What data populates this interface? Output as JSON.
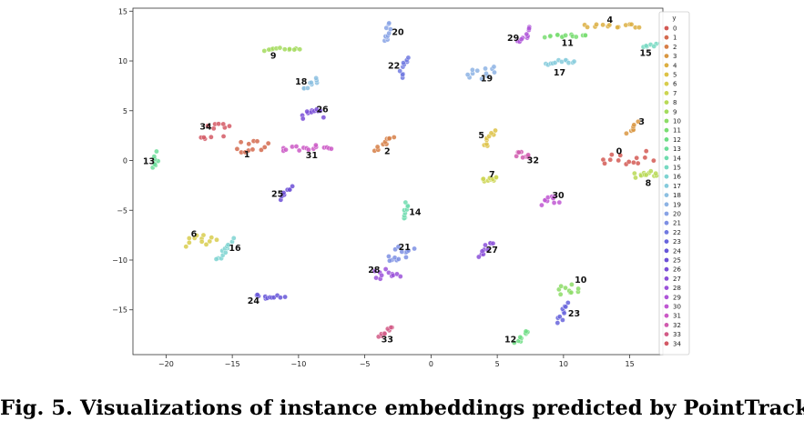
{
  "caption": "Fig. 5. Visualizations of instance embeddings predicted by PointTrack.",
  "chart_data": {
    "type": "scatter",
    "title": "",
    "xlabel": "",
    "ylabel": "",
    "xlim": [
      -22.5,
      17.5
    ],
    "ylim": [
      -19.5,
      15.3
    ],
    "xticks": [
      -20,
      -15,
      -10,
      -5,
      0,
      5,
      10,
      15
    ],
    "yticks": [
      15,
      10,
      5,
      0,
      -5,
      -10,
      -15
    ],
    "grid": false,
    "legend": {
      "title": "y",
      "placement": "right",
      "entries": [
        "0",
        "1",
        "2",
        "3",
        "4",
        "5",
        "6",
        "7",
        "8",
        "9",
        "10",
        "11",
        "12",
        "13",
        "14",
        "15",
        "16",
        "17",
        "18",
        "19",
        "20",
        "21",
        "22",
        "23",
        "24",
        "25",
        "26",
        "27",
        "28",
        "29",
        "30",
        "31",
        "32",
        "33",
        "34"
      ]
    },
    "palette": [
      "#d35a55",
      "#d46a4e",
      "#d67f47",
      "#d99742",
      "#dcaf42",
      "#ddc246",
      "#d8cd4d",
      "#ccd551",
      "#b8d956",
      "#a3db5d",
      "#8cdc66",
      "#79dd72",
      "#6ddd84",
      "#6cdd99",
      "#70dcaf",
      "#77d9c2",
      "#7ed3d1",
      "#86cbdc",
      "#8cc0e1",
      "#8db3e4",
      "#88a3e5",
      "#7d8fe3",
      "#7079e0",
      "#6764dc",
      "#6656d8",
      "#6c4fd6",
      "#7a4ed7",
      "#8a4fd8",
      "#9b52d9",
      "#ae55d8",
      "#bf57d2",
      "#cb59c6",
      "#d05aae",
      "#d25a86",
      "#d35965"
    ],
    "clusters": [
      {
        "id": "0",
        "cx": 14.8,
        "cy": 0.2,
        "dx": 3.6,
        "dy": 1.3,
        "n": 14,
        "lx": 14.2,
        "ly": 0.9
      },
      {
        "id": "1",
        "cx": -13.5,
        "cy": 1.3,
        "dx": 2.2,
        "dy": 1.4,
        "n": 12,
        "lx": -13.9,
        "ly": 0.6
      },
      {
        "id": "2",
        "cx": -3.5,
        "cy": 1.8,
        "dx": 1.2,
        "dy": 1.4,
        "n": 10,
        "lx": -3.3,
        "ly": 0.9
      },
      {
        "id": "3",
        "cx": 15.2,
        "cy": 3.2,
        "dx": 0.7,
        "dy": 1.2,
        "n": 8,
        "lx": 15.9,
        "ly": 3.9
      },
      {
        "id": "4",
        "cx": 13.8,
        "cy": 13.5,
        "dx": 4.2,
        "dy": 0.4,
        "n": 14,
        "lx": 13.5,
        "ly": 14.1
      },
      {
        "id": "5",
        "cx": 4.4,
        "cy": 2.3,
        "dx": 0.8,
        "dy": 1.8,
        "n": 9,
        "lx": 3.8,
        "ly": 2.5
      },
      {
        "id": "6",
        "cx": -17.3,
        "cy": -8.0,
        "dx": 2.3,
        "dy": 1.2,
        "n": 12,
        "lx": -17.9,
        "ly": -7.4
      },
      {
        "id": "7",
        "cx": 4.4,
        "cy": -2.0,
        "dx": 1.0,
        "dy": 0.5,
        "n": 10,
        "lx": 4.6,
        "ly": -1.4
      },
      {
        "id": "8",
        "cx": 16.2,
        "cy": -1.4,
        "dx": 1.8,
        "dy": 0.6,
        "n": 12,
        "lx": 16.4,
        "ly": -2.3
      },
      {
        "id": "9",
        "cx": -11.2,
        "cy": 11.2,
        "dx": 2.6,
        "dy": 0.3,
        "n": 12,
        "lx": -11.9,
        "ly": 10.5
      },
      {
        "id": "10",
        "cx": 10.4,
        "cy": -12.8,
        "dx": 1.4,
        "dy": 1.1,
        "n": 10,
        "lx": 11.3,
        "ly": -12.0
      },
      {
        "id": "11",
        "cx": 10.2,
        "cy": 12.5,
        "dx": 3.1,
        "dy": 0.3,
        "n": 14,
        "lx": 10.3,
        "ly": 11.8
      },
      {
        "id": "12",
        "cx": 6.9,
        "cy": -17.7,
        "dx": 0.9,
        "dy": 1.4,
        "n": 9,
        "lx": 6.0,
        "ly": -18.0
      },
      {
        "id": "13",
        "cx": -20.8,
        "cy": -0.1,
        "dx": 0.3,
        "dy": 1.6,
        "n": 8,
        "lx": -21.3,
        "ly": -0.1
      },
      {
        "id": "14",
        "cx": -1.9,
        "cy": -5.0,
        "dx": 0.4,
        "dy": 1.6,
        "n": 9,
        "lx": -1.2,
        "ly": -5.2
      },
      {
        "id": "15",
        "cx": 16.7,
        "cy": 11.6,
        "dx": 1.3,
        "dy": 0.3,
        "n": 8,
        "lx": 16.2,
        "ly": 10.8
      },
      {
        "id": "16",
        "cx": -15.5,
        "cy": -9.0,
        "dx": 1.2,
        "dy": 2.0,
        "n": 12,
        "lx": -14.8,
        "ly": -8.8
      },
      {
        "id": "17",
        "cx": 9.8,
        "cy": 9.9,
        "dx": 1.9,
        "dy": 0.6,
        "n": 12,
        "lx": 9.7,
        "ly": 8.8
      },
      {
        "id": "18",
        "cx": -9.0,
        "cy": 7.7,
        "dx": 1.1,
        "dy": 1.2,
        "n": 9,
        "lx": -9.8,
        "ly": 7.9
      },
      {
        "id": "19",
        "cx": 3.8,
        "cy": 8.8,
        "dx": 2.0,
        "dy": 1.4,
        "n": 12,
        "lx": 4.2,
        "ly": 8.2
      },
      {
        "id": "20",
        "cx": -3.2,
        "cy": 12.8,
        "dx": 0.3,
        "dy": 1.8,
        "n": 10,
        "lx": -2.5,
        "ly": 12.9
      },
      {
        "id": "21",
        "cx": -2.3,
        "cy": -9.3,
        "dx": 1.9,
        "dy": 1.3,
        "n": 14,
        "lx": -2.0,
        "ly": -8.7
      },
      {
        "id": "22",
        "cx": -2.1,
        "cy": 9.4,
        "dx": 0.5,
        "dy": 2.0,
        "n": 10,
        "lx": -2.8,
        "ly": 9.5
      },
      {
        "id": "23",
        "cx": 9.9,
        "cy": -15.3,
        "dx": 0.6,
        "dy": 1.8,
        "n": 10,
        "lx": 10.8,
        "ly": -15.4
      },
      {
        "id": "24",
        "cx": -12.2,
        "cy": -13.6,
        "dx": 2.2,
        "dy": 0.6,
        "n": 12,
        "lx": -13.4,
        "ly": -14.1
      },
      {
        "id": "25",
        "cx": -10.9,
        "cy": -3.2,
        "dx": 0.5,
        "dy": 1.2,
        "n": 8,
        "lx": -11.6,
        "ly": -3.4
      },
      {
        "id": "26",
        "cx": -8.9,
        "cy": 4.7,
        "dx": 1.4,
        "dy": 1.0,
        "n": 12,
        "lx": -8.2,
        "ly": 5.1
      },
      {
        "id": "27",
        "cx": 4.1,
        "cy": -8.9,
        "dx": 1.0,
        "dy": 1.5,
        "n": 10,
        "lx": 4.6,
        "ly": -9.0
      },
      {
        "id": "28",
        "cx": -3.3,
        "cy": -11.3,
        "dx": 1.9,
        "dy": 1.0,
        "n": 12,
        "lx": -4.3,
        "ly": -11.0
      },
      {
        "id": "29",
        "cx": 7.1,
        "cy": 12.6,
        "dx": 0.9,
        "dy": 1.6,
        "n": 10,
        "lx": 6.2,
        "ly": 12.3
      },
      {
        "id": "30",
        "cx": 9.0,
        "cy": -4.2,
        "dx": 1.3,
        "dy": 1.2,
        "n": 10,
        "lx": 9.6,
        "ly": -3.5
      },
      {
        "id": "31",
        "cx": -9.4,
        "cy": 1.3,
        "dx": 3.8,
        "dy": 0.7,
        "n": 16,
        "lx": -9.0,
        "ly": 0.5
      },
      {
        "id": "32",
        "cx": 6.9,
        "cy": 0.6,
        "dx": 0.9,
        "dy": 0.7,
        "n": 8,
        "lx": 7.7,
        "ly": 0.0
      },
      {
        "id": "33",
        "cx": -3.4,
        "cy": -17.2,
        "dx": 1.0,
        "dy": 1.1,
        "n": 9,
        "lx": -3.3,
        "ly": -18.0
      },
      {
        "id": "34",
        "cx": -16.3,
        "cy": 2.9,
        "dx": 2.0,
        "dy": 1.5,
        "n": 12,
        "lx": -17.0,
        "ly": 3.4
      }
    ]
  }
}
